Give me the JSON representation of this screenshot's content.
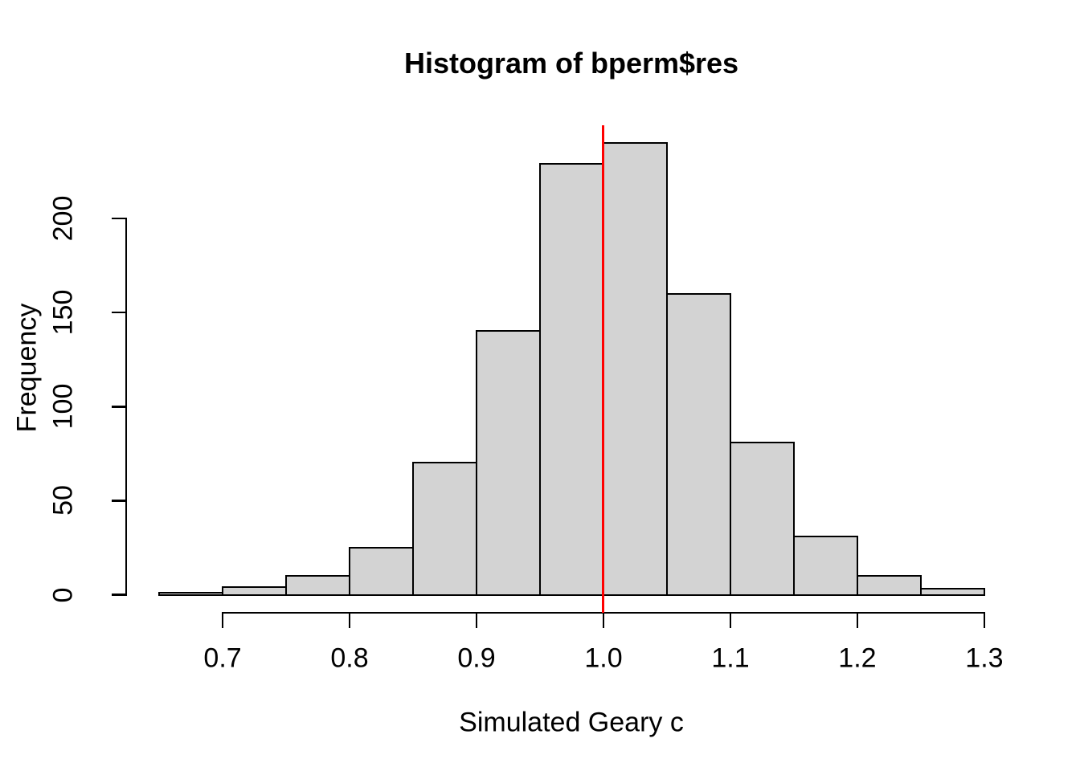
{
  "chart_data": {
    "type": "bar",
    "variant": "histogram",
    "title": "Histogram of bperm$res",
    "xlabel": "Simulated Geary c",
    "ylabel": "Frequency",
    "bin_edges": [
      0.65,
      0.7,
      0.75,
      0.8,
      0.85,
      0.9,
      0.95,
      1.0,
      1.05,
      1.1,
      1.15,
      1.2,
      1.25,
      1.3
    ],
    "counts": [
      1,
      4,
      10,
      25,
      70,
      140,
      229,
      240,
      160,
      81,
      31,
      10,
      3
    ],
    "xlim": [
      0.65,
      1.3
    ],
    "ylim": [
      0,
      240
    ],
    "x_tick_values": [
      0.7,
      0.8,
      0.9,
      1.0,
      1.1,
      1.2,
      1.3
    ],
    "x_tick_labels": [
      "0.7",
      "0.8",
      "0.9",
      "1.0",
      "1.1",
      "1.2",
      "1.3"
    ],
    "y_tick_values": [
      0,
      50,
      100,
      150,
      200
    ],
    "y_tick_labels": [
      "0",
      "50",
      "100",
      "150",
      "200"
    ],
    "grid": false,
    "legend": false,
    "bar_fill_color": "#D3D3D3",
    "bar_border_color": "#000000",
    "axis_color": "#000000",
    "reference_line": {
      "x": 1.0,
      "color": "#FF0000"
    }
  }
}
